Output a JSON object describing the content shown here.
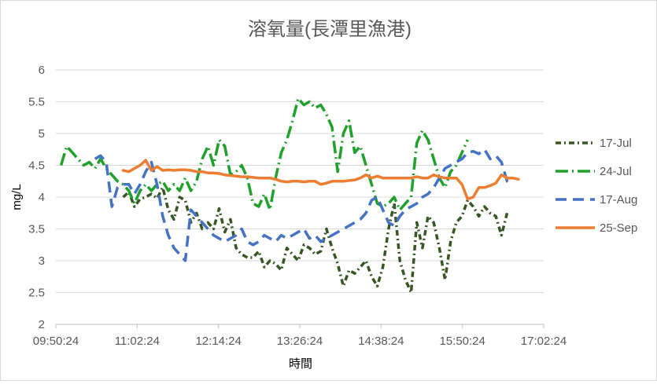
{
  "chart_data": {
    "type": "line",
    "title": "溶氧量(長潭里漁港)",
    "xlabel": "時間",
    "ylabel": "mg/L",
    "x_range": [
      "09:50:24",
      "17:02:24"
    ],
    "x_tick_interval_minutes": 72,
    "x_ticks": [
      "09:50:24",
      "11:02:24",
      "12:14:24",
      "13:26:24",
      "14:38:24",
      "15:50:24",
      "17:02:24"
    ],
    "ylim": [
      2,
      6
    ],
    "y_ticks": [
      "2",
      "2.5",
      "3",
      "3.5",
      "4",
      "4.5",
      "5",
      "5.5",
      "6"
    ],
    "grid": "horizontal",
    "legend": "right",
    "series": [
      {
        "name": "17-Jul",
        "color": "#375623",
        "dash": "dash-dot",
        "points": [
          [
            "10:50",
            4.0
          ],
          [
            "10:55",
            4.08
          ],
          [
            "11:00",
            3.85
          ],
          [
            "11:05",
            3.97
          ],
          [
            "11:10",
            4.0
          ],
          [
            "11:15",
            4.05
          ],
          [
            "11:20",
            3.98
          ],
          [
            "11:25",
            4.15
          ],
          [
            "11:30",
            3.8
          ],
          [
            "11:35",
            3.65
          ],
          [
            "11:40",
            4.0
          ],
          [
            "11:45",
            3.95
          ],
          [
            "11:50",
            3.6
          ],
          [
            "11:55",
            3.75
          ],
          [
            "12:00",
            3.5
          ],
          [
            "12:05",
            3.6
          ],
          [
            "12:10",
            3.5
          ],
          [
            "12:15",
            3.82
          ],
          [
            "12:20",
            3.45
          ],
          [
            "12:25",
            3.65
          ],
          [
            "12:30",
            3.2
          ],
          [
            "12:35",
            3.1
          ],
          [
            "12:40",
            3.05
          ],
          [
            "12:45",
            3.05
          ],
          [
            "12:50",
            3.15
          ],
          [
            "12:55",
            2.9
          ],
          [
            "13:00",
            3.0
          ],
          [
            "13:05",
            2.95
          ],
          [
            "13:10",
            2.85
          ],
          [
            "13:15",
            3.2
          ],
          [
            "13:20",
            3.1
          ],
          [
            "13:25",
            3.0
          ],
          [
            "13:30",
            3.25
          ],
          [
            "13:35",
            3.2
          ],
          [
            "13:40",
            3.1
          ],
          [
            "13:45",
            3.15
          ],
          [
            "13:50",
            3.5
          ],
          [
            "13:55",
            3.2
          ],
          [
            "14:00",
            2.95
          ],
          [
            "14:05",
            2.6
          ],
          [
            "14:10",
            2.85
          ],
          [
            "14:15",
            2.8
          ],
          [
            "14:20",
            2.9
          ],
          [
            "14:25",
            3.0
          ],
          [
            "14:30",
            2.75
          ],
          [
            "14:35",
            2.6
          ],
          [
            "14:40",
            2.9
          ],
          [
            "14:45",
            3.5
          ],
          [
            "14:50",
            3.9
          ],
          [
            "14:55",
            3.0
          ],
          [
            "15:00",
            2.7
          ],
          [
            "15:05",
            2.5
          ],
          [
            "15:10",
            3.6
          ],
          [
            "15:15",
            3.2
          ],
          [
            "15:20",
            3.7
          ],
          [
            "15:25",
            3.6
          ],
          [
            "15:30",
            3.2
          ],
          [
            "15:35",
            2.7
          ],
          [
            "15:40",
            3.3
          ],
          [
            "15:45",
            3.6
          ],
          [
            "15:50",
            3.7
          ],
          [
            "15:55",
            3.95
          ],
          [
            "16:00",
            3.85
          ],
          [
            "16:05",
            3.7
          ],
          [
            "16:10",
            3.85
          ],
          [
            "16:15",
            3.75
          ],
          [
            "16:20",
            3.7
          ],
          [
            "16:25",
            3.4
          ],
          [
            "16:30",
            3.75
          ]
        ]
      },
      {
        "name": "24-Jul",
        "color": "#1fa12c",
        "dash": "long-dash-dot",
        "points": [
          [
            "09:55",
            4.5
          ],
          [
            "10:00",
            4.8
          ],
          [
            "10:05",
            4.7
          ],
          [
            "10:10",
            4.6
          ],
          [
            "10:15",
            4.5
          ],
          [
            "10:20",
            4.55
          ],
          [
            "10:25",
            4.45
          ],
          [
            "10:30",
            4.6
          ],
          [
            "10:35",
            4.45
          ],
          [
            "10:40",
            4.35
          ],
          [
            "10:45",
            4.25
          ],
          [
            "10:50",
            4.2
          ],
          [
            "10:55",
            4.1
          ],
          [
            "11:00",
            3.9
          ],
          [
            "11:05",
            4.1
          ],
          [
            "11:10",
            4.2
          ],
          [
            "11:15",
            4.1
          ],
          [
            "11:20",
            4.2
          ],
          [
            "11:25",
            4.25
          ],
          [
            "11:30",
            4.1
          ],
          [
            "11:35",
            4.2
          ],
          [
            "11:40",
            4.1
          ],
          [
            "11:45",
            4.3
          ],
          [
            "11:50",
            4.1
          ],
          [
            "11:55",
            4.25
          ],
          [
            "12:00",
            4.6
          ],
          [
            "12:05",
            4.8
          ],
          [
            "12:10",
            4.5
          ],
          [
            "12:15",
            4.9
          ],
          [
            "12:20",
            4.8
          ],
          [
            "12:25",
            4.35
          ],
          [
            "12:30",
            4.4
          ],
          [
            "12:35",
            4.5
          ],
          [
            "12:40",
            4.3
          ],
          [
            "12:45",
            3.9
          ],
          [
            "12:50",
            3.85
          ],
          [
            "12:55",
            4.05
          ],
          [
            "13:00",
            3.8
          ],
          [
            "13:05",
            4.3
          ],
          [
            "13:10",
            4.7
          ],
          [
            "13:15",
            4.9
          ],
          [
            "13:20",
            5.2
          ],
          [
            "13:25",
            5.55
          ],
          [
            "13:30",
            5.45
          ],
          [
            "13:35",
            5.5
          ],
          [
            "13:40",
            5.4
          ],
          [
            "13:45",
            5.45
          ],
          [
            "13:50",
            5.3
          ],
          [
            "13:55",
            5.1
          ],
          [
            "14:00",
            4.4
          ],
          [
            "14:05",
            5.0
          ],
          [
            "14:10",
            5.2
          ],
          [
            "14:15",
            4.7
          ],
          [
            "14:20",
            4.8
          ],
          [
            "14:25",
            4.5
          ],
          [
            "14:30",
            4.2
          ],
          [
            "14:35",
            3.9
          ],
          [
            "14:40",
            3.85
          ],
          [
            "14:45",
            3.9
          ],
          [
            "14:50",
            4.0
          ],
          [
            "14:55",
            3.8
          ],
          [
            "15:00",
            3.9
          ],
          [
            "15:05",
            4.0
          ],
          [
            "15:10",
            4.85
          ],
          [
            "15:15",
            5.05
          ],
          [
            "15:20",
            4.9
          ],
          [
            "15:25",
            4.6
          ],
          [
            "15:30",
            4.3
          ],
          [
            "15:35",
            4.15
          ],
          [
            "15:40",
            4.4
          ],
          [
            "15:45",
            4.5
          ],
          [
            "15:50",
            4.7
          ],
          [
            "15:55",
            4.9
          ]
        ]
      },
      {
        "name": "17-Aug",
        "color": "#4472c4",
        "dash": "dash",
        "points": [
          [
            "10:25",
            4.6
          ],
          [
            "10:30",
            4.65
          ],
          [
            "10:35",
            4.55
          ],
          [
            "10:40",
            3.85
          ],
          [
            "10:45",
            4.15
          ],
          [
            "10:50",
            4.2
          ],
          [
            "10:55",
            4.2
          ],
          [
            "11:00",
            4.05
          ],
          [
            "11:05",
            4.2
          ],
          [
            "11:10",
            4.4
          ],
          [
            "11:15",
            4.55
          ],
          [
            "11:20",
            4.2
          ],
          [
            "11:25",
            3.7
          ],
          [
            "11:30",
            3.4
          ],
          [
            "11:35",
            3.2
          ],
          [
            "11:40",
            3.1
          ],
          [
            "11:45",
            3.0
          ],
          [
            "11:50",
            3.8
          ],
          [
            "11:55",
            3.7
          ],
          [
            "12:00",
            3.6
          ],
          [
            "12:05",
            3.5
          ],
          [
            "12:10",
            3.4
          ],
          [
            "12:15",
            3.35
          ],
          [
            "12:20",
            3.3
          ],
          [
            "12:25",
            3.35
          ],
          [
            "12:30",
            3.4
          ],
          [
            "12:35",
            3.5
          ],
          [
            "12:40",
            3.3
          ],
          [
            "12:45",
            3.25
          ],
          [
            "12:50",
            3.3
          ],
          [
            "12:55",
            3.4
          ],
          [
            "13:00",
            3.35
          ],
          [
            "13:05",
            3.3
          ],
          [
            "13:10",
            3.4
          ],
          [
            "13:15",
            3.35
          ],
          [
            "13:20",
            3.4
          ],
          [
            "13:25",
            3.45
          ],
          [
            "13:30",
            3.5
          ],
          [
            "13:35",
            3.35
          ],
          [
            "13:40",
            3.4
          ],
          [
            "13:45",
            3.3
          ],
          [
            "13:50",
            3.35
          ],
          [
            "13:55",
            3.4
          ],
          [
            "14:00",
            3.45
          ],
          [
            "14:05",
            3.5
          ],
          [
            "14:10",
            3.55
          ],
          [
            "14:15",
            3.6
          ],
          [
            "14:20",
            3.65
          ],
          [
            "14:25",
            3.75
          ],
          [
            "14:30",
            3.95
          ],
          [
            "14:35",
            4.0
          ],
          [
            "14:40",
            3.8
          ],
          [
            "14:45",
            3.6
          ],
          [
            "14:50",
            3.55
          ],
          [
            "14:55",
            3.7
          ],
          [
            "15:00",
            3.8
          ],
          [
            "15:05",
            3.85
          ],
          [
            "15:10",
            3.9
          ],
          [
            "15:15",
            4.0
          ],
          [
            "15:20",
            4.05
          ],
          [
            "15:25",
            4.15
          ],
          [
            "15:30",
            4.3
          ],
          [
            "15:35",
            4.45
          ],
          [
            "15:40",
            4.5
          ],
          [
            "15:45",
            4.55
          ],
          [
            "15:50",
            4.6
          ],
          [
            "15:55",
            4.7
          ],
          [
            "16:00",
            4.72
          ],
          [
            "16:05",
            4.68
          ],
          [
            "16:10",
            4.75
          ],
          [
            "16:15",
            4.6
          ],
          [
            "16:20",
            4.65
          ],
          [
            "16:25",
            4.55
          ],
          [
            "16:30",
            4.25
          ],
          [
            "16:35",
            4.2
          ]
        ]
      },
      {
        "name": "25-Sep",
        "color": "#ed7d31",
        "dash": "solid",
        "points": [
          [
            "10:50",
            4.42
          ],
          [
            "10:55",
            4.4
          ],
          [
            "11:00",
            4.45
          ],
          [
            "11:05",
            4.5
          ],
          [
            "11:10",
            4.58
          ],
          [
            "11:15",
            4.42
          ],
          [
            "11:20",
            4.48
          ],
          [
            "11:25",
            4.42
          ],
          [
            "11:30",
            4.43
          ],
          [
            "11:35",
            4.42
          ],
          [
            "11:40",
            4.43
          ],
          [
            "11:45",
            4.43
          ],
          [
            "11:50",
            4.42
          ],
          [
            "11:55",
            4.4
          ],
          [
            "12:00",
            4.4
          ],
          [
            "12:05",
            4.38
          ],
          [
            "12:10",
            4.38
          ],
          [
            "12:15",
            4.37
          ],
          [
            "12:20",
            4.35
          ],
          [
            "12:25",
            4.34
          ],
          [
            "12:30",
            4.33
          ],
          [
            "12:35",
            4.32
          ],
          [
            "12:40",
            4.32
          ],
          [
            "12:45",
            4.31
          ],
          [
            "12:50",
            4.3
          ],
          [
            "12:55",
            4.3
          ],
          [
            "13:00",
            4.3
          ],
          [
            "13:05",
            4.28
          ],
          [
            "13:10",
            4.25
          ],
          [
            "13:15",
            4.24
          ],
          [
            "13:20",
            4.25
          ],
          [
            "13:25",
            4.25
          ],
          [
            "13:30",
            4.24
          ],
          [
            "13:35",
            4.25
          ],
          [
            "13:40",
            4.25
          ],
          [
            "13:45",
            4.2
          ],
          [
            "13:50",
            4.22
          ],
          [
            "13:55",
            4.25
          ],
          [
            "14:00",
            4.25
          ],
          [
            "14:05",
            4.25
          ],
          [
            "14:10",
            4.26
          ],
          [
            "14:15",
            4.27
          ],
          [
            "14:20",
            4.3
          ],
          [
            "14:25",
            4.35
          ],
          [
            "14:30",
            4.3
          ],
          [
            "14:35",
            4.33
          ],
          [
            "14:40",
            4.3
          ],
          [
            "14:45",
            4.3
          ],
          [
            "14:50",
            4.3
          ],
          [
            "14:55",
            4.3
          ],
          [
            "15:00",
            4.3
          ],
          [
            "15:05",
            4.3
          ],
          [
            "15:10",
            4.32
          ],
          [
            "15:15",
            4.3
          ],
          [
            "15:20",
            4.3
          ],
          [
            "15:25",
            4.35
          ],
          [
            "15:30",
            4.32
          ],
          [
            "15:35",
            4.3
          ],
          [
            "15:40",
            4.3
          ],
          [
            "15:45",
            4.3
          ],
          [
            "15:50",
            4.2
          ],
          [
            "15:55",
            3.97
          ],
          [
            "16:00",
            4.0
          ],
          [
            "16:05",
            4.15
          ],
          [
            "16:10",
            4.15
          ],
          [
            "16:15",
            4.18
          ],
          [
            "16:20",
            4.22
          ],
          [
            "16:25",
            4.35
          ],
          [
            "16:30",
            4.3
          ],
          [
            "16:35",
            4.3
          ],
          [
            "16:40",
            4.28
          ]
        ]
      }
    ]
  }
}
